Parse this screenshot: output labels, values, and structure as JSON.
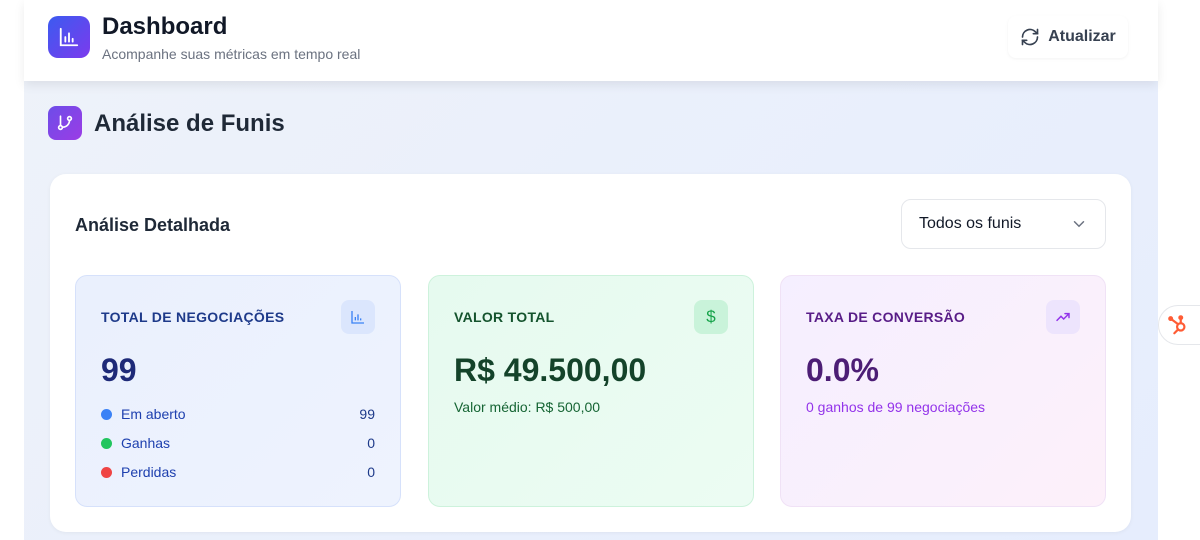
{
  "header": {
    "title": "Dashboard",
    "subtitle": "Acompanhe suas métricas em tempo real",
    "refresh_label": "Atualizar"
  },
  "section": {
    "title": "Análise de Funis"
  },
  "card": {
    "title": "Análise Detalhada",
    "funnel_select": "Todos os funis"
  },
  "stats": [
    {
      "label": "TOTAL DE NEGOCIAÇÕES",
      "value": "99",
      "icon": "bar-chart-icon",
      "breakdown": [
        {
          "label": "Em aberto",
          "value": "99",
          "color": "#3b82f6"
        },
        {
          "label": "Ganhas",
          "value": "0",
          "color": "#22c55e"
        },
        {
          "label": "Perdidas",
          "value": "0",
          "color": "#ef4444"
        }
      ]
    },
    {
      "label": "VALOR TOTAL",
      "value": "R$ 49.500,00",
      "sub": "Valor médio: R$ 500,00",
      "icon": "dollar-icon",
      "icon_glyph": "$"
    },
    {
      "label": "TAXA DE CONVERSÃO",
      "value": "0.0%",
      "sub": "0 ganhos de 99 negociações",
      "icon": "trending-up-icon"
    }
  ],
  "colors": {
    "accent": "#4f46e5",
    "hubspot": "#ff5c35"
  }
}
